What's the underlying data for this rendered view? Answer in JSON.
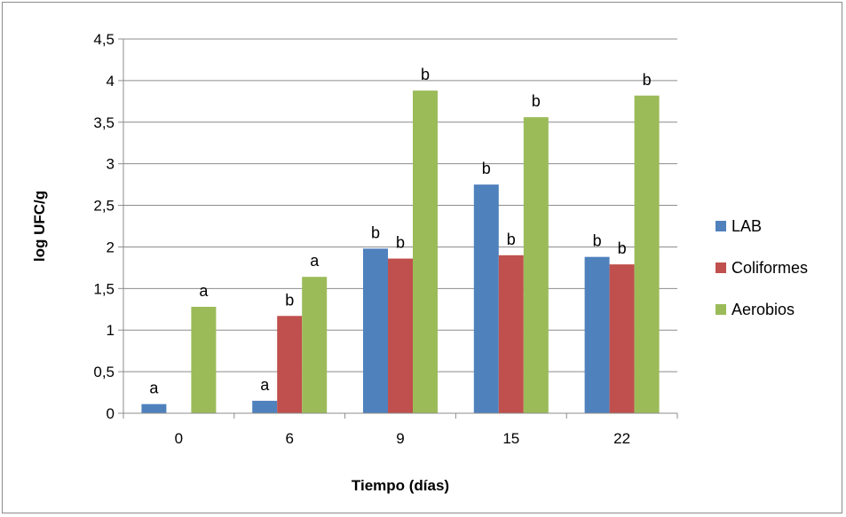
{
  "chart_data": {
    "type": "bar",
    "title": "",
    "xlabel": "Tiempo (días)",
    "ylabel": "log UFC/g",
    "categories": [
      "0",
      "6",
      "9",
      "15",
      "22"
    ],
    "ylim": [
      0,
      4.5
    ],
    "yticks": [
      "0",
      "0,5",
      "1",
      "1,5",
      "2",
      "2,5",
      "3",
      "3,5",
      "4",
      "4,5"
    ],
    "ytick_values": [
      0,
      0.5,
      1,
      1.5,
      2,
      2.5,
      3,
      3.5,
      4,
      4.5
    ],
    "grid": true,
    "legend_position": "right",
    "series": [
      {
        "name": "LAB",
        "color": "#4F81BD",
        "values": [
          0.11,
          0.15,
          1.98,
          2.75,
          1.88
        ],
        "labels": [
          "a",
          "a",
          "b",
          "b",
          "b"
        ]
      },
      {
        "name": "Coliformes",
        "color": "#C0504D",
        "values": [
          0,
          1.17,
          1.86,
          1.9,
          1.79
        ],
        "labels": [
          "",
          "b",
          "b",
          "b",
          "b"
        ]
      },
      {
        "name": "Aerobios",
        "color": "#9BBB59",
        "values": [
          1.28,
          1.64,
          3.88,
          3.56,
          3.82
        ],
        "labels": [
          "a",
          "a",
          "b",
          "b",
          "b"
        ]
      }
    ]
  }
}
